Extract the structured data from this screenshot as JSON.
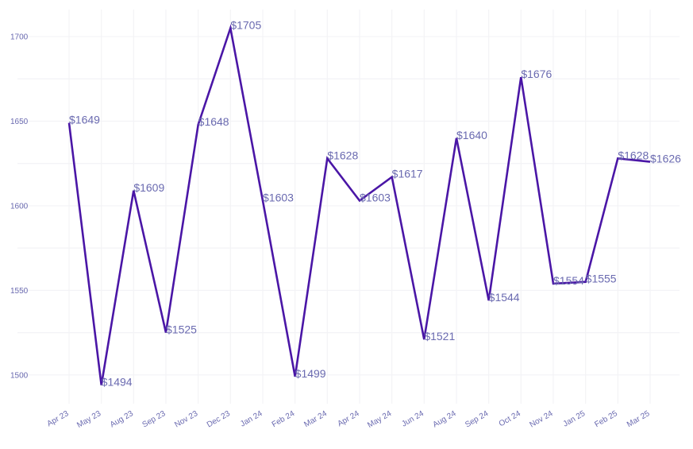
{
  "chart_data": {
    "type": "line",
    "title": "",
    "xlabel": "",
    "ylabel": "",
    "categories": [
      "Apr 23",
      "May 23",
      "Aug 23",
      "Sep 23",
      "Nov 23",
      "Dec 23",
      "Jan 24",
      "Feb 24",
      "Mar 24",
      "Apr 24",
      "May 24",
      "Jun 24",
      "Aug 24",
      "Sep 24",
      "Oct 24",
      "Nov 24",
      "Jan 25",
      "Feb 25",
      "Mar 25"
    ],
    "values": [
      1649,
      1494,
      1609,
      1525,
      1648,
      1705,
      1603,
      1499,
      1628,
      1603,
      1617,
      1521,
      1640,
      1544,
      1676,
      1554,
      1555,
      1628,
      1626
    ],
    "data_labels": [
      "$1649",
      "$1494",
      "$1609",
      "$1525",
      "$1648",
      "$1705",
      "$1603",
      "$1499",
      "$1628",
      "$1603",
      "$1617",
      "$1521",
      "$1640",
      "$1544",
      "$1676",
      "$1554",
      "$1555",
      "$1628",
      "$1626"
    ],
    "y_ticks": [
      1500,
      1550,
      1600,
      1650,
      1700
    ],
    "y_tick_labels": [
      "1500",
      "1550",
      "1600",
      "1650",
      "1700"
    ],
    "ylim": [
      1483,
      1716
    ],
    "grid": true,
    "legend": "none",
    "colors": {
      "line": "#4a16a6",
      "text": "#6a6ab0",
      "grid": "#f3f3f6"
    }
  }
}
